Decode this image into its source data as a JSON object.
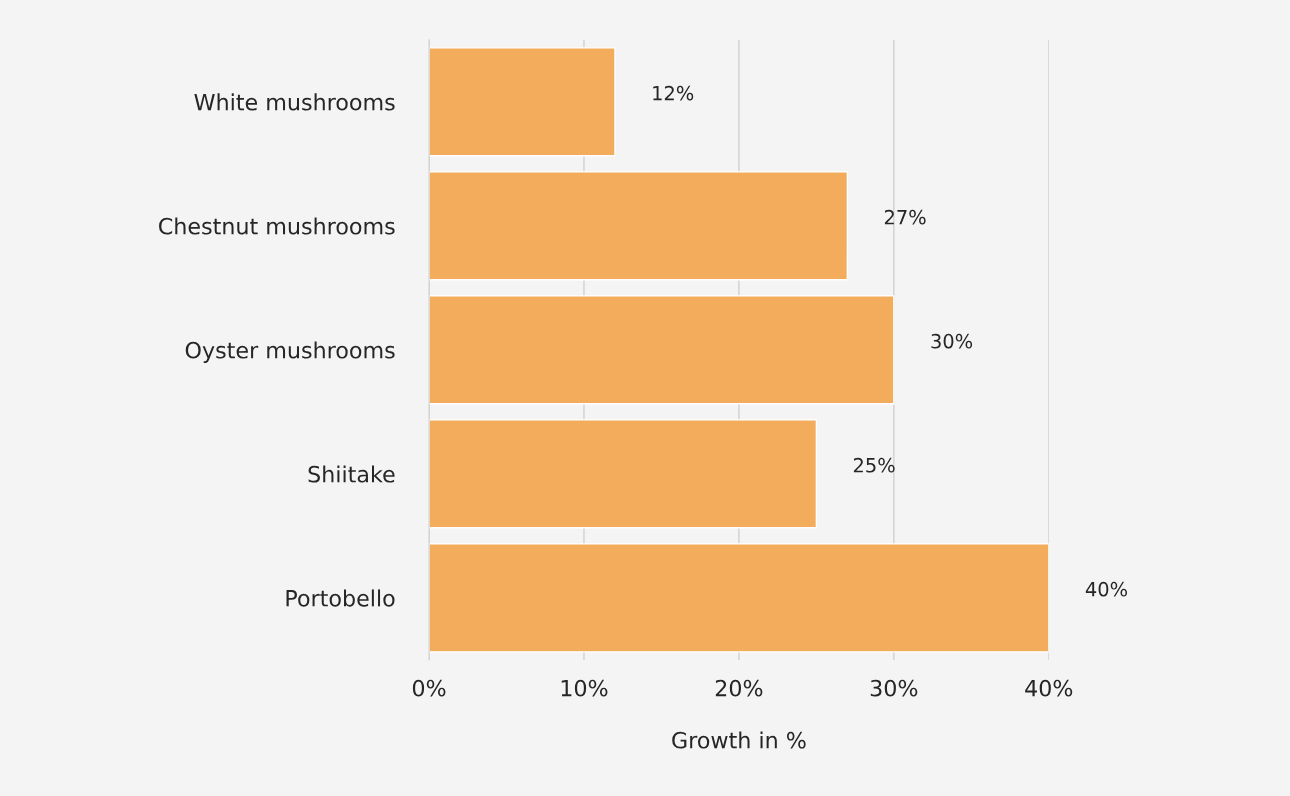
{
  "chart_data": {
    "type": "bar",
    "orientation": "horizontal",
    "xlabel": "Growth in %",
    "categories": [
      "White mushrooms",
      "Chestnut mushrooms",
      "Oyster mushrooms",
      "Shiitake",
      "Portobello"
    ],
    "values": [
      12,
      27,
      30,
      25,
      40
    ],
    "value_labels": [
      "12%",
      "27%",
      "30%",
      "25%",
      "40%"
    ],
    "color": "#f2ac5c",
    "xlim": [
      0,
      40
    ],
    "xticks": [
      {
        "value": 0,
        "label": "0%"
      },
      {
        "value": 10,
        "label": "10%"
      },
      {
        "value": 20,
        "label": "20%"
      },
      {
        "value": 30,
        "label": "30%"
      },
      {
        "value": 40,
        "label": "40%"
      }
    ],
    "grid": "x",
    "legend": false
  }
}
